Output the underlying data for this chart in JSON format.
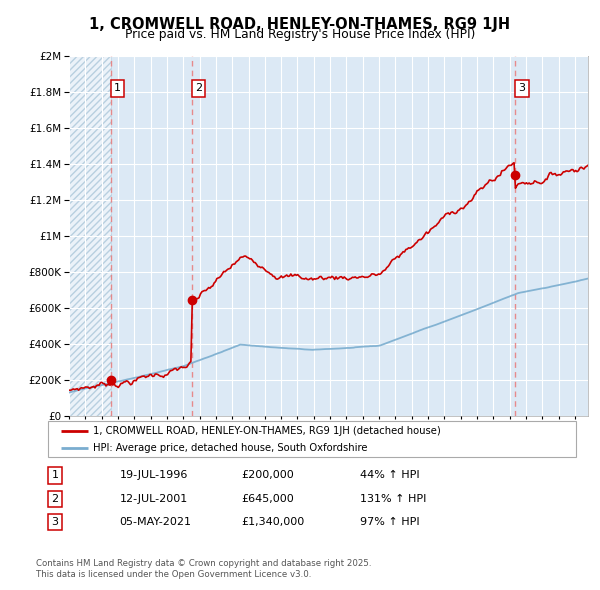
{
  "title": "1, CROMWELL ROAD, HENLEY-ON-THAMES, RG9 1JH",
  "subtitle": "Price paid vs. HM Land Registry's House Price Index (HPI)",
  "background_color": "#ffffff",
  "plot_bg_color": "#dce9f5",
  "hatch_color": "#b8cfe0",
  "grid_color": "#ffffff",
  "sale_dates_num": [
    1996.55,
    2001.53,
    2021.34
  ],
  "sale_prices": [
    200000,
    645000,
    1340000
  ],
  "sale_labels": [
    "1",
    "2",
    "3"
  ],
  "legend_label_red": "1, CROMWELL ROAD, HENLEY-ON-THAMES, RG9 1JH (detached house)",
  "legend_label_blue": "HPI: Average price, detached house, South Oxfordshire",
  "table_rows": [
    [
      "1",
      "19-JUL-1996",
      "£200,000",
      "44% ↑ HPI"
    ],
    [
      "2",
      "12-JUL-2001",
      "£645,000",
      "131% ↑ HPI"
    ],
    [
      "3",
      "05-MAY-2021",
      "£1,340,000",
      "97% ↑ HPI"
    ]
  ],
  "footer": "Contains HM Land Registry data © Crown copyright and database right 2025.\nThis data is licensed under the Open Government Licence v3.0.",
  "red_color": "#cc0000",
  "blue_color": "#7aadcf",
  "vline_color": "#e88080",
  "ylim": [
    0,
    2000000
  ],
  "xlim_start": 1994.0,
  "xlim_end": 2025.8
}
